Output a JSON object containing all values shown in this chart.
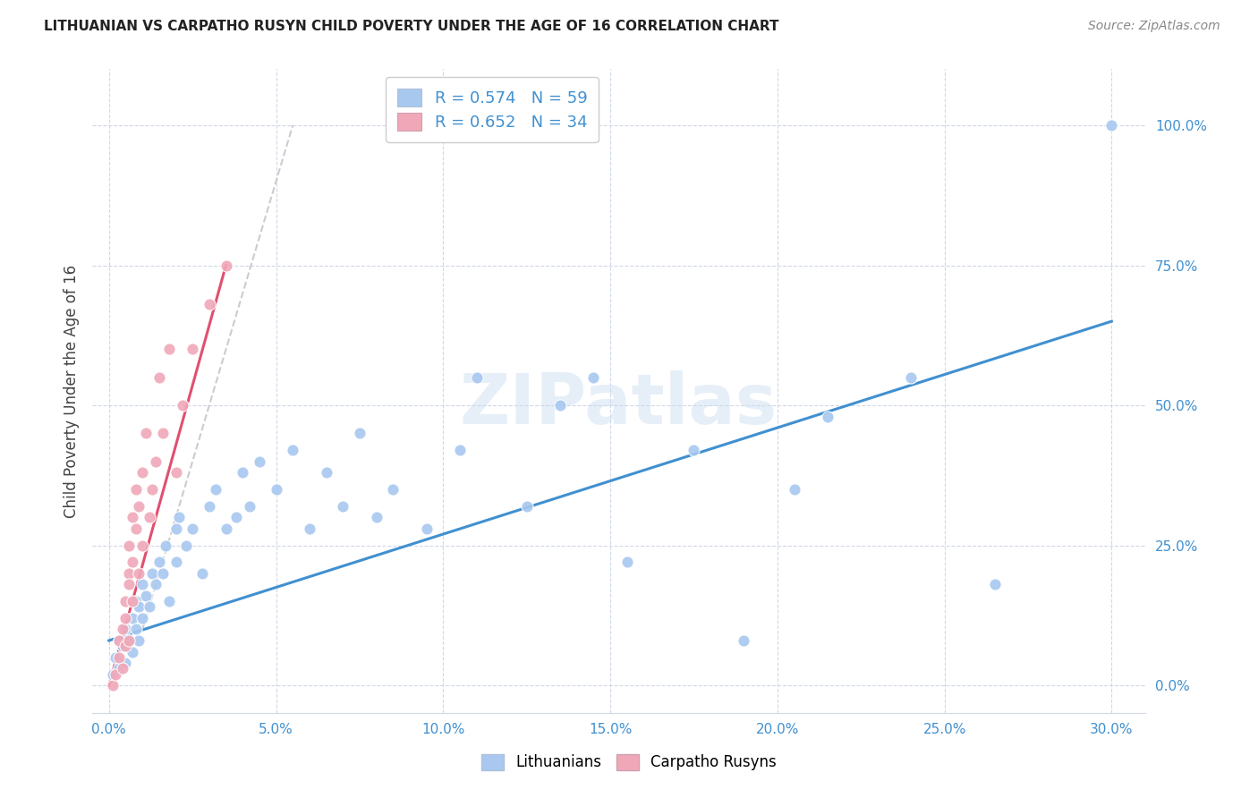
{
  "title": "LITHUANIAN VS CARPATHO RUSYN CHILD POVERTY UNDER THE AGE OF 16 CORRELATION CHART",
  "source": "Source: ZipAtlas.com",
  "xlabel_ticks": [
    "0.0%",
    "5.0%",
    "10.0%",
    "15.0%",
    "20.0%",
    "25.0%",
    "30.0%"
  ],
  "xlabel_vals": [
    0,
    5,
    10,
    15,
    20,
    25,
    30
  ],
  "ylabel_ticks": [
    "0.0%",
    "25.0%",
    "50.0%",
    "75.0%",
    "100.0%"
  ],
  "ylabel_vals": [
    0,
    25,
    50,
    75,
    100
  ],
  "xlim": [
    -0.5,
    31
  ],
  "ylim": [
    -5,
    110
  ],
  "R_blue": 0.574,
  "N_blue": 59,
  "R_pink": 0.652,
  "N_pink": 34,
  "blue_color": "#a8c8f0",
  "pink_color": "#f0a8b8",
  "blue_line_color": "#4090d0",
  "pink_line_color": "#e05070",
  "ref_line_color": "#c0c0c0",
  "watermark": "ZIPatlas",
  "ylabel": "Child Poverty Under the Age of 16",
  "legend_label_blue": "Lithuanians",
  "legend_label_pink": "Carpatho Rusyns",
  "blue_x": [
    0.1,
    0.2,
    0.3,
    0.3,
    0.4,
    0.5,
    0.5,
    0.6,
    0.7,
    0.7,
    0.8,
    0.8,
    0.9,
    0.9,
    1.0,
    1.0,
    1.1,
    1.2,
    1.3,
    1.4,
    1.5,
    1.6,
    1.7,
    1.8,
    2.0,
    2.0,
    2.1,
    2.3,
    2.5,
    2.8,
    3.0,
    3.2,
    3.5,
    3.8,
    4.0,
    4.2,
    4.5,
    5.0,
    5.5,
    6.0,
    6.5,
    7.0,
    7.5,
    8.0,
    8.5,
    9.5,
    10.5,
    11.0,
    12.5,
    13.5,
    14.5,
    15.5,
    17.5,
    19.0,
    20.5,
    21.5,
    24.0,
    26.5,
    30.0
  ],
  "blue_y": [
    2,
    5,
    3,
    8,
    7,
    10,
    4,
    8,
    6,
    12,
    10,
    15,
    8,
    14,
    12,
    18,
    16,
    14,
    20,
    18,
    22,
    20,
    25,
    15,
    28,
    22,
    30,
    25,
    28,
    20,
    32,
    35,
    28,
    30,
    38,
    32,
    40,
    35,
    42,
    28,
    38,
    32,
    45,
    30,
    35,
    28,
    42,
    55,
    32,
    50,
    55,
    22,
    42,
    8,
    35,
    48,
    55,
    18,
    100
  ],
  "pink_x": [
    0.1,
    0.2,
    0.3,
    0.3,
    0.4,
    0.4,
    0.5,
    0.5,
    0.5,
    0.6,
    0.6,
    0.6,
    0.6,
    0.7,
    0.7,
    0.7,
    0.8,
    0.8,
    0.9,
    0.9,
    1.0,
    1.0,
    1.1,
    1.2,
    1.3,
    1.4,
    1.5,
    1.6,
    1.8,
    2.0,
    2.2,
    2.5,
    3.0,
    3.5
  ],
  "pink_y": [
    0,
    2,
    5,
    8,
    3,
    10,
    12,
    7,
    15,
    8,
    20,
    18,
    25,
    15,
    22,
    30,
    28,
    35,
    20,
    32,
    38,
    25,
    45,
    30,
    35,
    40,
    55,
    45,
    60,
    38,
    50,
    60,
    68,
    75
  ],
  "blue_line_x0": 0,
  "blue_line_y0": 8,
  "blue_line_x1": 30,
  "blue_line_y1": 65,
  "pink_line_x0": 0,
  "pink_line_y0": 0,
  "pink_line_x1": 3.5,
  "pink_line_y1": 75,
  "ref_line_x0": 1.0,
  "ref_line_y0": 10,
  "ref_line_x1": 5.5,
  "ref_line_y1": 100
}
